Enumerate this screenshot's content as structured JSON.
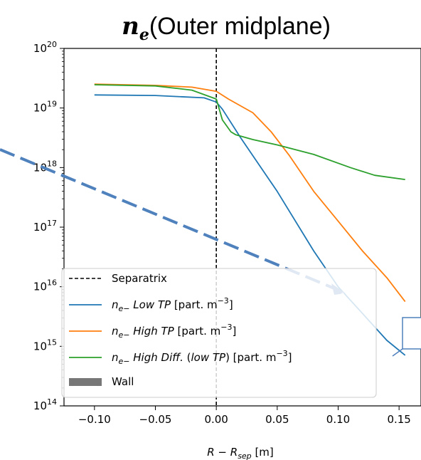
{
  "chart_data": {
    "type": "line",
    "title_symbol": "n",
    "title_subscript": "e",
    "title_text": "(Outer midplane)",
    "xlabel": "R − R",
    "xlabel_subscript": "sep",
    "xlabel_unit": " [m]",
    "xlim": [
      -0.125,
      0.168
    ],
    "ylim_log10": [
      14,
      20
    ],
    "y_scale": "log",
    "x_ticks": [
      -0.1,
      -0.05,
      0.0,
      0.05,
      0.1,
      0.15
    ],
    "x_tick_labels": [
      "−0.10",
      "−0.05",
      "0.00",
      "0.05",
      "0.10",
      "0.15"
    ],
    "y_tick_exponents": [
      14,
      15,
      16,
      17,
      18,
      19,
      20
    ],
    "y_tick_base": "10",
    "wall_x_start": 0.168,
    "separatrix_x": 0.0,
    "colors": {
      "low": "#1f77b4",
      "high": "#ff7f0e",
      "diff": "#2ca02c",
      "wall": "#222222",
      "arrow": "#4f81bd"
    },
    "series": [
      {
        "key": "low",
        "name_symbol": "n",
        "name_sub": "e−",
        "name_italic": "Low TP",
        "name_unit": " [part. m",
        "name_exp": "−3",
        "name_close": "]",
        "x": [
          -0.1,
          -0.05,
          -0.01,
          0.0,
          0.005,
          0.02,
          0.05,
          0.08,
          0.1,
          0.12,
          0.14,
          0.155
        ],
        "log10": [
          19.22,
          19.21,
          19.17,
          19.1,
          18.98,
          18.5,
          17.6,
          16.6,
          16.0,
          15.55,
          15.1,
          14.85
        ]
      },
      {
        "key": "high",
        "name_symbol": "n",
        "name_sub": "e−",
        "name_italic": "High TP",
        "name_unit": " [part. m",
        "name_exp": "−3",
        "name_close": "]",
        "x": [
          -0.1,
          -0.05,
          -0.02,
          0.0,
          0.01,
          0.03,
          0.045,
          0.06,
          0.08,
          0.1,
          0.12,
          0.14,
          0.155
        ],
        "log10": [
          19.4,
          19.38,
          19.35,
          19.28,
          19.15,
          18.92,
          18.6,
          18.2,
          17.6,
          17.1,
          16.6,
          16.15,
          15.75
        ]
      },
      {
        "key": "diff",
        "name_symbol": "n",
        "name_sub": "e−",
        "name_italic": "High Diff.",
        "name_mid": " (",
        "name_italic2": "low TP",
        "name_unit": ") [part. m",
        "name_exp": "−3",
        "name_close": "]",
        "x": [
          -0.1,
          -0.05,
          -0.02,
          0.0,
          0.005,
          0.012,
          0.016,
          0.03,
          0.05,
          0.08,
          0.11,
          0.13,
          0.155
        ],
        "log10": [
          19.39,
          19.37,
          19.3,
          19.15,
          18.8,
          18.6,
          18.55,
          18.47,
          18.38,
          18.22,
          18.0,
          17.87,
          17.8
        ]
      }
    ],
    "legend": {
      "placement": "lower-left",
      "separatrix_label": "Separatrix",
      "wall_label": "Wall"
    }
  }
}
